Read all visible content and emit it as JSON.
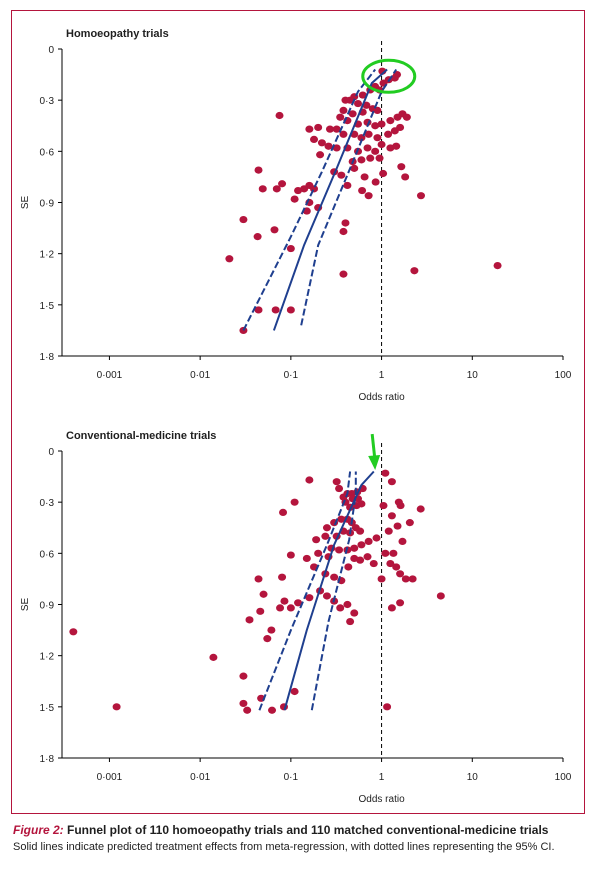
{
  "caption": {
    "figure_label": "Figure 2:",
    "title": " Funnel plot of 110 homoeopathy trials and 110 matched conventional-medicine trials",
    "subtitle": "Solid lines indicate predicted treatment effects from meta-regression, with dotted lines representing the 95% CI."
  },
  "colors": {
    "points": "#b4153d",
    "lines": "#1f3f8f",
    "frame": "#b4153d",
    "highlight_ellipse": "#22cc22",
    "highlight_arrow": "#22cc22"
  },
  "chart_data": [
    {
      "type": "scatter",
      "title": "Homoeopathy trials",
      "xlabel": "Odds ratio",
      "ylabel": "SE",
      "xscale": "log",
      "xlim": [
        0.0003,
        100
      ],
      "ylim": [
        0,
        1.8
      ],
      "y_inverted": true,
      "xticks": [
        0.001,
        0.01,
        0.1,
        1,
        10,
        100
      ],
      "xtick_labels": [
        "0·001",
        "0·01",
        "0·1",
        "1",
        "10",
        "100"
      ],
      "yticks": [
        0,
        0.3,
        0.6,
        0.9,
        1.2,
        1.5,
        1.8
      ],
      "ytick_labels": [
        "0",
        "0·3",
        "0·6",
        "0·9",
        "1·2",
        "1·5",
        "1·8"
      ],
      "reference_line_or": 1,
      "highlight": {
        "shape": "ellipse",
        "center": [
          1.2,
          0.16
        ]
      },
      "regression": {
        "fit": [
          [
            0.065,
            1.65
          ],
          [
            0.14,
            1.15
          ],
          [
            0.32,
            0.7
          ],
          [
            0.78,
            0.2
          ],
          [
            1.15,
            0.12
          ]
        ],
        "ci_lower": [
          [
            0.03,
            1.65
          ],
          [
            0.1,
            1.1
          ],
          [
            0.22,
            0.72
          ],
          [
            0.55,
            0.25
          ],
          [
            0.85,
            0.12
          ]
        ],
        "ci_upper": [
          [
            0.13,
            1.62
          ],
          [
            0.2,
            1.15
          ],
          [
            0.45,
            0.7
          ],
          [
            1.0,
            0.25
          ],
          [
            1.45,
            0.12
          ]
        ]
      },
      "points": [
        [
          1.02,
          0.13
        ],
        [
          1.48,
          0.15
        ],
        [
          1.4,
          0.17
        ],
        [
          1.2,
          0.18
        ],
        [
          1.05,
          0.2
        ],
        [
          0.95,
          0.24
        ],
        [
          0.85,
          0.22
        ],
        [
          0.75,
          0.24
        ],
        [
          0.62,
          0.27
        ],
        [
          0.5,
          0.28
        ],
        [
          0.45,
          0.3
        ],
        [
          0.4,
          0.3
        ],
        [
          0.55,
          0.32
        ],
        [
          0.68,
          0.33
        ],
        [
          0.8,
          0.35
        ],
        [
          0.9,
          0.36
        ],
        [
          0.62,
          0.37
        ],
        [
          0.48,
          0.38
        ],
        [
          0.38,
          0.36
        ],
        [
          0.35,
          0.4
        ],
        [
          0.42,
          0.42
        ],
        [
          0.55,
          0.44
        ],
        [
          0.7,
          0.43
        ],
        [
          0.85,
          0.45
        ],
        [
          1.0,
          0.44
        ],
        [
          1.25,
          0.42
        ],
        [
          1.5,
          0.4
        ],
        [
          1.7,
          0.38
        ],
        [
          1.9,
          0.4
        ],
        [
          1.6,
          0.46
        ],
        [
          1.4,
          0.48
        ],
        [
          1.18,
          0.5
        ],
        [
          0.9,
          0.52
        ],
        [
          0.72,
          0.5
        ],
        [
          0.6,
          0.52
        ],
        [
          0.5,
          0.5
        ],
        [
          0.38,
          0.5
        ],
        [
          0.32,
          0.47
        ],
        [
          0.27,
          0.47
        ],
        [
          0.2,
          0.46
        ],
        [
          0.16,
          0.47
        ],
        [
          0.18,
          0.53
        ],
        [
          0.22,
          0.55
        ],
        [
          0.26,
          0.57
        ],
        [
          0.32,
          0.58
        ],
        [
          0.42,
          0.58
        ],
        [
          0.55,
          0.6
        ],
        [
          0.7,
          0.58
        ],
        [
          0.85,
          0.6
        ],
        [
          1.0,
          0.56
        ],
        [
          1.25,
          0.58
        ],
        [
          1.45,
          0.57
        ],
        [
          0.75,
          0.64
        ],
        [
          0.6,
          0.65
        ],
        [
          0.48,
          0.66
        ],
        [
          0.95,
          0.64
        ],
        [
          0.21,
          0.62
        ],
        [
          0.3,
          0.72
        ],
        [
          0.36,
          0.74
        ],
        [
          0.5,
          0.7
        ],
        [
          0.65,
          0.75
        ],
        [
          0.86,
          0.78
        ],
        [
          1.04,
          0.73
        ],
        [
          1.65,
          0.69
        ],
        [
          1.82,
          0.75
        ],
        [
          2.72,
          0.86
        ],
        [
          0.42,
          0.8
        ],
        [
          0.61,
          0.83
        ],
        [
          0.72,
          0.86
        ],
        [
          0.16,
          0.8
        ],
        [
          0.18,
          0.82
        ],
        [
          0.14,
          0.82
        ],
        [
          0.12,
          0.83
        ],
        [
          0.049,
          0.82
        ],
        [
          0.08,
          0.79
        ],
        [
          0.07,
          0.82
        ],
        [
          0.044,
          0.71
        ],
        [
          0.075,
          0.39
        ],
        [
          0.11,
          0.88
        ],
        [
          0.16,
          0.9
        ],
        [
          0.2,
          0.93
        ],
        [
          0.15,
          0.95
        ],
        [
          0.03,
          1.0
        ],
        [
          0.043,
          1.1
        ],
        [
          0.066,
          1.06
        ],
        [
          0.38,
          1.07
        ],
        [
          0.4,
          1.02
        ],
        [
          0.1,
          1.17
        ],
        [
          0.021,
          1.23
        ],
        [
          0.38,
          1.32
        ],
        [
          2.3,
          1.3
        ],
        [
          19.0,
          1.27
        ],
        [
          0.044,
          1.53
        ],
        [
          0.068,
          1.53
        ],
        [
          0.1,
          1.53
        ],
        [
          0.03,
          1.65
        ]
      ]
    },
    {
      "type": "scatter",
      "title": "Conventional-medicine trials",
      "xlabel": "Odds ratio",
      "ylabel": "SE",
      "xscale": "log",
      "xlim": [
        0.0003,
        100
      ],
      "ylim": [
        0,
        1.8
      ],
      "y_inverted": true,
      "xticks": [
        0.001,
        0.01,
        0.1,
        1,
        10,
        100
      ],
      "xtick_labels": [
        "0·001",
        "0·01",
        "0·1",
        "1",
        "10",
        "100"
      ],
      "yticks": [
        0,
        0.3,
        0.6,
        0.9,
        1.2,
        1.5,
        1.8
      ],
      "ytick_labels": [
        "0",
        "0·3",
        "0·6",
        "0·9",
        "1·2",
        "1·5",
        "1·8"
      ],
      "reference_line_or": 1,
      "highlight": {
        "shape": "arrow",
        "target": [
          0.85,
          0.1
        ]
      },
      "regression": {
        "fit": [
          [
            0.085,
            1.52
          ],
          [
            0.15,
            1.05
          ],
          [
            0.3,
            0.55
          ],
          [
            0.6,
            0.2
          ],
          [
            0.82,
            0.12
          ]
        ],
        "ci_lower": [
          [
            0.045,
            1.52
          ],
          [
            0.1,
            1.05
          ],
          [
            0.25,
            0.55
          ],
          [
            0.42,
            0.25
          ],
          [
            0.45,
            0.12
          ]
        ],
        "ci_upper": [
          [
            0.17,
            1.52
          ],
          [
            0.26,
            1.0
          ],
          [
            0.44,
            0.52
          ],
          [
            0.52,
            0.25
          ],
          [
            0.52,
            0.12
          ]
        ]
      },
      "points": [
        [
          1.1,
          0.13
        ],
        [
          1.3,
          0.18
        ],
        [
          0.62,
          0.22
        ],
        [
          0.54,
          0.24
        ],
        [
          0.47,
          0.25
        ],
        [
          0.42,
          0.25
        ],
        [
          0.38,
          0.27
        ],
        [
          0.48,
          0.28
        ],
        [
          0.55,
          0.28
        ],
        [
          0.4,
          0.3
        ],
        [
          0.45,
          0.33
        ],
        [
          0.53,
          0.32
        ],
        [
          0.6,
          0.31
        ],
        [
          0.16,
          0.17
        ],
        [
          0.32,
          0.18
        ],
        [
          0.34,
          0.22
        ],
        [
          0.11,
          0.3
        ],
        [
          0.082,
          0.36
        ],
        [
          0.25,
          0.45
        ],
        [
          0.3,
          0.42
        ],
        [
          0.36,
          0.4
        ],
        [
          0.42,
          0.4
        ],
        [
          0.47,
          0.42
        ],
        [
          0.52,
          0.45
        ],
        [
          0.58,
          0.47
        ],
        [
          0.45,
          0.48
        ],
        [
          0.38,
          0.47
        ],
        [
          0.32,
          0.5
        ],
        [
          0.24,
          0.5
        ],
        [
          0.19,
          0.52
        ],
        [
          0.28,
          0.57
        ],
        [
          0.34,
          0.58
        ],
        [
          0.42,
          0.58
        ],
        [
          0.5,
          0.57
        ],
        [
          0.6,
          0.55
        ],
        [
          0.72,
          0.53
        ],
        [
          0.88,
          0.51
        ],
        [
          1.05,
          0.32
        ],
        [
          1.3,
          0.38
        ],
        [
          1.62,
          0.32
        ],
        [
          1.55,
          0.3
        ],
        [
          2.7,
          0.34
        ],
        [
          2.05,
          0.42
        ],
        [
          1.5,
          0.44
        ],
        [
          1.7,
          0.53
        ],
        [
          1.2,
          0.47
        ],
        [
          0.2,
          0.6
        ],
        [
          0.26,
          0.62
        ],
        [
          0.1,
          0.61
        ],
        [
          0.15,
          0.63
        ],
        [
          0.18,
          0.68
        ],
        [
          0.24,
          0.72
        ],
        [
          0.3,
          0.74
        ],
        [
          0.36,
          0.76
        ],
        [
          0.43,
          0.68
        ],
        [
          0.5,
          0.63
        ],
        [
          0.58,
          0.64
        ],
        [
          0.7,
          0.62
        ],
        [
          0.82,
          0.66
        ],
        [
          1.1,
          0.6
        ],
        [
          1.35,
          0.6
        ],
        [
          1.25,
          0.66
        ],
        [
          1.45,
          0.68
        ],
        [
          1.6,
          0.72
        ],
        [
          1.85,
          0.75
        ],
        [
          2.2,
          0.75
        ],
        [
          1.0,
          0.75
        ],
        [
          0.08,
          0.74
        ],
        [
          0.044,
          0.75
        ],
        [
          0.05,
          0.84
        ],
        [
          0.076,
          0.92
        ],
        [
          0.085,
          0.88
        ],
        [
          0.046,
          0.94
        ],
        [
          0.1,
          0.92
        ],
        [
          0.12,
          0.89
        ],
        [
          0.16,
          0.86
        ],
        [
          0.21,
          0.82
        ],
        [
          0.25,
          0.85
        ],
        [
          0.3,
          0.88
        ],
        [
          0.35,
          0.92
        ],
        [
          0.42,
          0.9
        ],
        [
          0.5,
          0.95
        ],
        [
          0.45,
          1.0
        ],
        [
          1.3,
          0.92
        ],
        [
          1.6,
          0.89
        ],
        [
          4.5,
          0.85
        ],
        [
          0.061,
          1.05
        ],
        [
          0.055,
          1.1
        ],
        [
          0.035,
          0.99
        ],
        [
          0.0004,
          1.06
        ],
        [
          0.014,
          1.21
        ],
        [
          0.03,
          1.32
        ],
        [
          0.11,
          1.41
        ],
        [
          0.047,
          1.45
        ],
        [
          0.03,
          1.48
        ],
        [
          0.033,
          1.52
        ],
        [
          0.062,
          1.52
        ],
        [
          0.084,
          1.5
        ],
        [
          0.0012,
          1.5
        ],
        [
          1.15,
          1.5
        ]
      ]
    }
  ]
}
